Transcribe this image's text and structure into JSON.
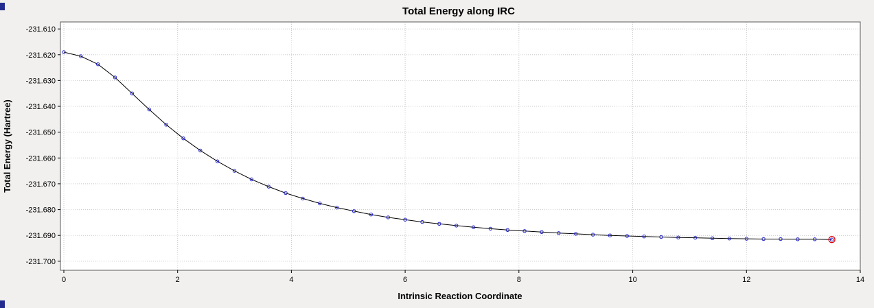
{
  "window": {
    "background": "#f1f0ef",
    "edge_color": "#232b8f"
  },
  "chart_data": {
    "type": "line",
    "title": "Total Energy along IRC",
    "xlabel": "Intrinsic Reaction Coordinate",
    "ylabel": "Total Energy (Hartree)",
    "xlim": [
      -0.06,
      14
    ],
    "ylim": [
      -231.7035,
      -231.6073
    ],
    "xticks": [
      0,
      2,
      4,
      6,
      8,
      10,
      12,
      14
    ],
    "yticks": [
      -231.61,
      -231.62,
      -231.63,
      -231.64,
      -231.65,
      -231.66,
      -231.67,
      -231.68,
      -231.69,
      -231.7
    ],
    "ytick_labels": [
      "-231.610",
      "-231.620",
      "-231.630",
      "-231.640",
      "-231.650",
      "-231.660",
      "-231.670",
      "-231.680",
      "-231.690",
      "-231.700"
    ],
    "grid": true,
    "legend": "none",
    "plot_bg": "#ffffff",
    "grid_color": "#c8c8c8",
    "frame_color": "#5a5a5a",
    "line_color": "#000000",
    "marker_color": "#2222cc",
    "highlight_color": "#e00000",
    "highlight_index": 45,
    "x": [
      0.0,
      0.3,
      0.6,
      0.9,
      1.2,
      1.5,
      1.8,
      2.1,
      2.4,
      2.7,
      3.0,
      3.3,
      3.6,
      3.9,
      4.2,
      4.5,
      4.8,
      5.1,
      5.4,
      5.7,
      6.0,
      6.3,
      6.6,
      6.9,
      7.2,
      7.5,
      7.8,
      8.1,
      8.4,
      8.7,
      9.0,
      9.3,
      9.6,
      9.9,
      10.2,
      10.5,
      10.8,
      11.1,
      11.4,
      11.7,
      12.0,
      12.3,
      12.6,
      12.9,
      13.2,
      13.5
    ],
    "y": [
      -231.619,
      -231.6206,
      -231.6237,
      -231.6288,
      -231.635,
      -231.6412,
      -231.6471,
      -231.6524,
      -231.6571,
      -231.6613,
      -231.665,
      -231.6683,
      -231.6711,
      -231.6736,
      -231.6757,
      -231.6776,
      -231.6792,
      -231.6806,
      -231.6819,
      -231.683,
      -231.6839,
      -231.6848,
      -231.6855,
      -231.6862,
      -231.6868,
      -231.6874,
      -231.6879,
      -231.6883,
      -231.6887,
      -231.6891,
      -231.6894,
      -231.6897,
      -231.69,
      -231.6902,
      -231.6904,
      -231.6906,
      -231.6908,
      -231.6909,
      -231.6911,
      -231.6912,
      -231.6913,
      -231.6914,
      -231.6914,
      -231.6915,
      -231.6915,
      -231.6916
    ]
  }
}
